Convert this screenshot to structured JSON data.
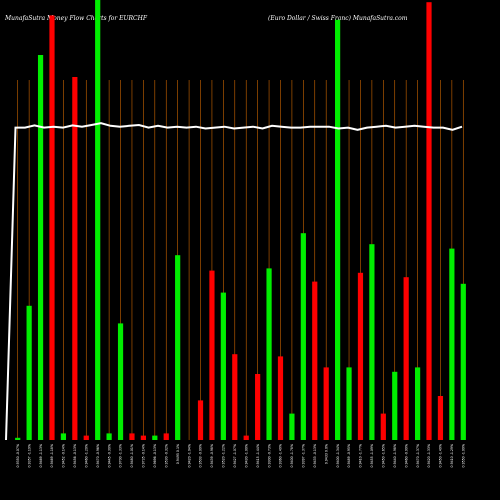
{
  "header": {
    "left": "MunafaSutra  Money Flow  Charts for EURCHF",
    "right": "(Euro  Dollar / Swiss Franc) MunafaSutra.com"
  },
  "colors": {
    "background": "#000000",
    "up": "#00ee00",
    "down": "#ff0000",
    "grid": "#cc6600",
    "price_line": "#ffffff",
    "text": "#ffffff"
  },
  "chart_data": {
    "type": "bar",
    "grid": true,
    "ylim": [
      0,
      1
    ],
    "categories": [
      "0.9350 -0.07%",
      "0.9357 -1.19%",
      "0.9469 -1.13%",
      "0.9469 -1.18%",
      "0.9452 -0.14%",
      "0.9456 -0.13%",
      "0.9460 -1.20%",
      "0.9470 -0.96%",
      "0.9445 -0.30%",
      "0.9700 -1.33%",
      "0.9480 -1.01%",
      "0.9735 -0.14%",
      "0.9696 -0.13%",
      "0.9530 -0.32%",
      "0.9495 0.1%",
      "0.9420 -1.04%",
      "0.9503 -0.09%",
      "0.9439 -0.98%",
      "0.9520 -1.22%",
      "0.9427 -1.07%",
      "0.9430 -1.00%",
      "0.9415 -1.44%",
      "0.9300 -0.73%",
      "0.9360 -1.49%",
      "0.9400 -1.78%",
      "0.9397 -1.37%",
      "0.9433 -0.13%",
      "0.9433 0.0%",
      "0.9400 -1.34%",
      "0.9489 -0.95%",
      "0.9410 -1.77%",
      "0.9455 -1.09%",
      "0.9450 -1.65%",
      "0.9440 -1.98%",
      "0.9460 -0.99%",
      "0.9470 -1.37%",
      "0.9420 -1.33%",
      "0.9450 -1.49%",
      "0.9410 -1.29%",
      "0.9550 -1.09%"
    ],
    "series": [
      {
        "directions": [
          "up",
          "up",
          "up",
          "down",
          "up",
          "down",
          "down",
          "up",
          "up",
          "up",
          "down",
          "down",
          "up",
          "down",
          "up",
          "down",
          "down",
          "down",
          "up",
          "down",
          "down",
          "down",
          "up",
          "down",
          "up",
          "up",
          "down",
          "down",
          "up",
          "up",
          "down",
          "up",
          "down",
          "up",
          "down",
          "up",
          "down",
          "down",
          "up",
          "up"
        ],
        "values": [
          0.005,
          0.305,
          0.875,
          0.965,
          0.015,
          0.825,
          0.01,
          1.0,
          0.015,
          0.265,
          0.015,
          0.01,
          0.01,
          0.015,
          0.42,
          0.0,
          0.09,
          0.385,
          0.335,
          0.195,
          0.01,
          0.15,
          0.39,
          0.19,
          0.06,
          0.47,
          0.36,
          0.165,
          0.955,
          0.165,
          0.38,
          0.445,
          0.06,
          0.155,
          0.37,
          0.165,
          0.995,
          0.1,
          0.435,
          0.355
        ]
      }
    ],
    "price_line": [
      0.0,
      0.71,
      0.71,
      0.715,
      0.71,
      0.712,
      0.71,
      0.715,
      0.712,
      0.716,
      0.72,
      0.714,
      0.712,
      0.714,
      0.716,
      0.71,
      0.714,
      0.71,
      0.712,
      0.71,
      0.712,
      0.708,
      0.71,
      0.712,
      0.708,
      0.71,
      0.712,
      0.708,
      0.714,
      0.712,
      0.71,
      0.71,
      0.712,
      0.712,
      0.712,
      0.708,
      0.71,
      0.705,
      0.71,
      0.712,
      0.714,
      0.71,
      0.712,
      0.714,
      0.712,
      0.71,
      0.71,
      0.705,
      0.712
    ]
  }
}
